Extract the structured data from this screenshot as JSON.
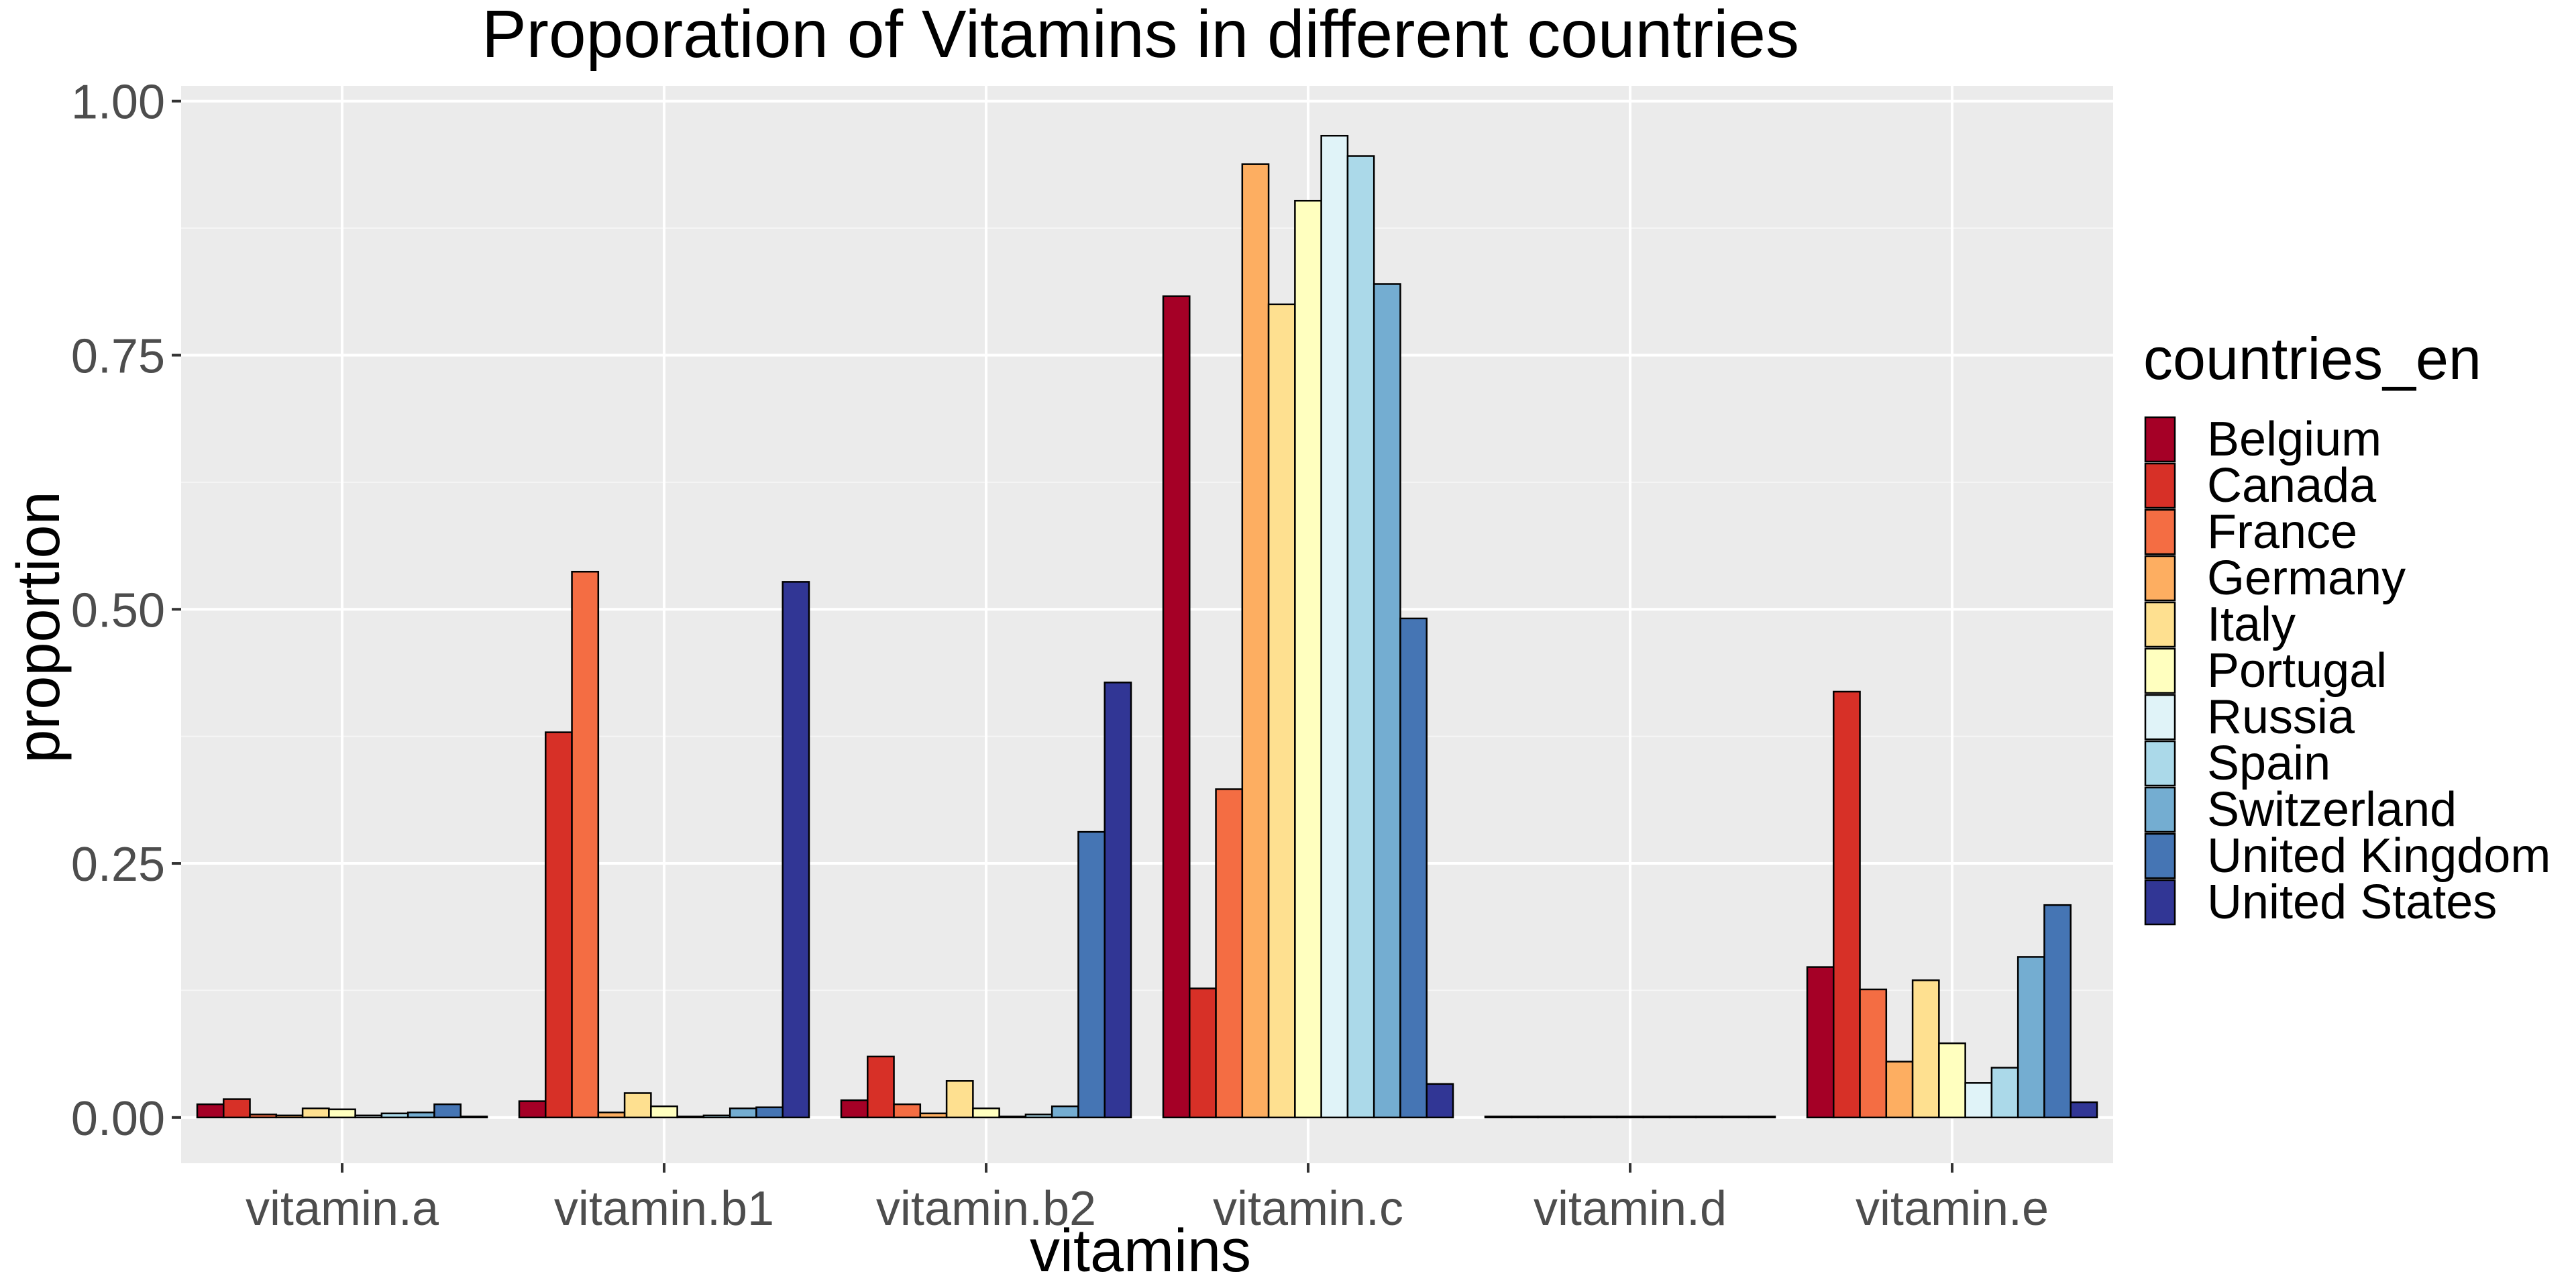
{
  "chart_data": {
    "type": "bar",
    "title": "Proporation of Vitamins in different countries",
    "xlabel": "vitamins",
    "ylabel": "proportion",
    "ylim": [
      -0.045,
      1.015
    ],
    "yticks": [
      "0.00",
      "0.25",
      "0.50",
      "0.75",
      "1.00"
    ],
    "ytick_values": [
      0,
      0.25,
      0.5,
      0.75,
      1.0
    ],
    "grid": true,
    "legend_title": "countries_en",
    "legend_position": "right",
    "categories": [
      "vitamin.a",
      "vitamin.b1",
      "vitamin.b2",
      "vitamin.c",
      "vitamin.d",
      "vitamin.e"
    ],
    "series": [
      {
        "name": "Belgium",
        "color": "#a50026",
        "values": [
          0.013,
          0.016,
          0.017,
          0.808,
          0.001,
          0.148
        ]
      },
      {
        "name": "Canada",
        "color": "#d73027",
        "values": [
          0.018,
          0.379,
          0.06,
          0.127,
          0.001,
          0.419
        ]
      },
      {
        "name": "France",
        "color": "#f46d43",
        "values": [
          0.003,
          0.537,
          0.013,
          0.323,
          0.001,
          0.126
        ]
      },
      {
        "name": "Germany",
        "color": "#fdae61",
        "values": [
          0.002,
          0.005,
          0.004,
          0.938,
          0.001,
          0.055
        ]
      },
      {
        "name": "Italy",
        "color": "#fee090",
        "values": [
          0.009,
          0.024,
          0.036,
          0.8,
          0.001,
          0.135
        ]
      },
      {
        "name": "Portugal",
        "color": "#ffffbf",
        "values": [
          0.008,
          0.011,
          0.009,
          0.902,
          0.001,
          0.073
        ]
      },
      {
        "name": "Russia",
        "color": "#e0f3f8",
        "values": [
          0.002,
          0.001,
          0.001,
          0.966,
          0.001,
          0.034
        ]
      },
      {
        "name": "Spain",
        "color": "#abd9e9",
        "values": [
          0.004,
          0.002,
          0.003,
          0.946,
          0.001,
          0.049
        ]
      },
      {
        "name": "Switzerland",
        "color": "#74add1",
        "values": [
          0.005,
          0.009,
          0.011,
          0.82,
          0.001,
          0.158
        ]
      },
      {
        "name": "United Kingdom",
        "color": "#4575b4",
        "values": [
          0.013,
          0.01,
          0.281,
          0.491,
          0.001,
          0.209
        ]
      },
      {
        "name": "United States",
        "color": "#313695",
        "values": [
          0.001,
          0.527,
          0.428,
          0.033,
          0.001,
          0.015
        ]
      }
    ]
  }
}
